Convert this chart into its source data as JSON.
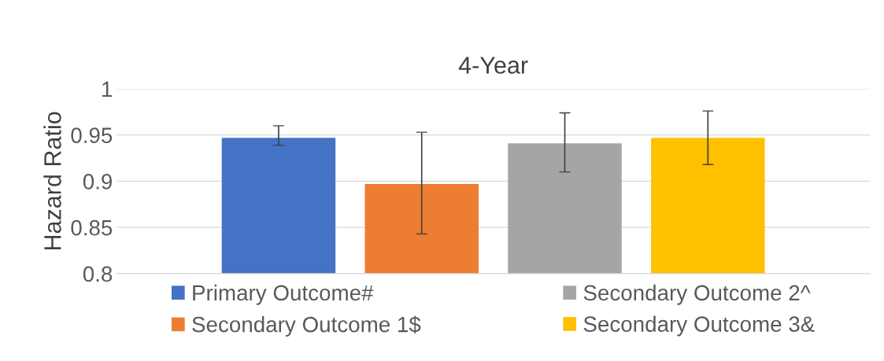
{
  "chart_data": {
    "type": "bar",
    "title": "4-Year",
    "ylabel": "Hazard Ratio",
    "categories": [
      null
    ],
    "series": [
      {
        "name": "Primary Outcome#",
        "color": "#4472c4",
        "values": [
          0.947
        ],
        "errors": [
          [
            0.939,
            0.96
          ]
        ]
      },
      {
        "name": "Secondary Outcome 1$",
        "color": "#ed7d31",
        "values": [
          0.897
        ],
        "errors": [
          [
            0.843,
            0.953
          ]
        ]
      },
      {
        "name": "Secondary Outcome 2^",
        "color": "#a5a5a5",
        "values": [
          0.941
        ],
        "errors": [
          [
            0.91,
            0.974
          ]
        ]
      },
      {
        "name": "Secondary Outcome 3&",
        "color": "#ffc000",
        "values": [
          0.947
        ],
        "errors": [
          [
            0.918,
            0.976
          ]
        ]
      }
    ],
    "ylim": [
      0.8,
      1
    ],
    "yticks": [
      0.8,
      0.85,
      0.9,
      0.95,
      1
    ],
    "grid": "y",
    "legend": "bottom"
  }
}
